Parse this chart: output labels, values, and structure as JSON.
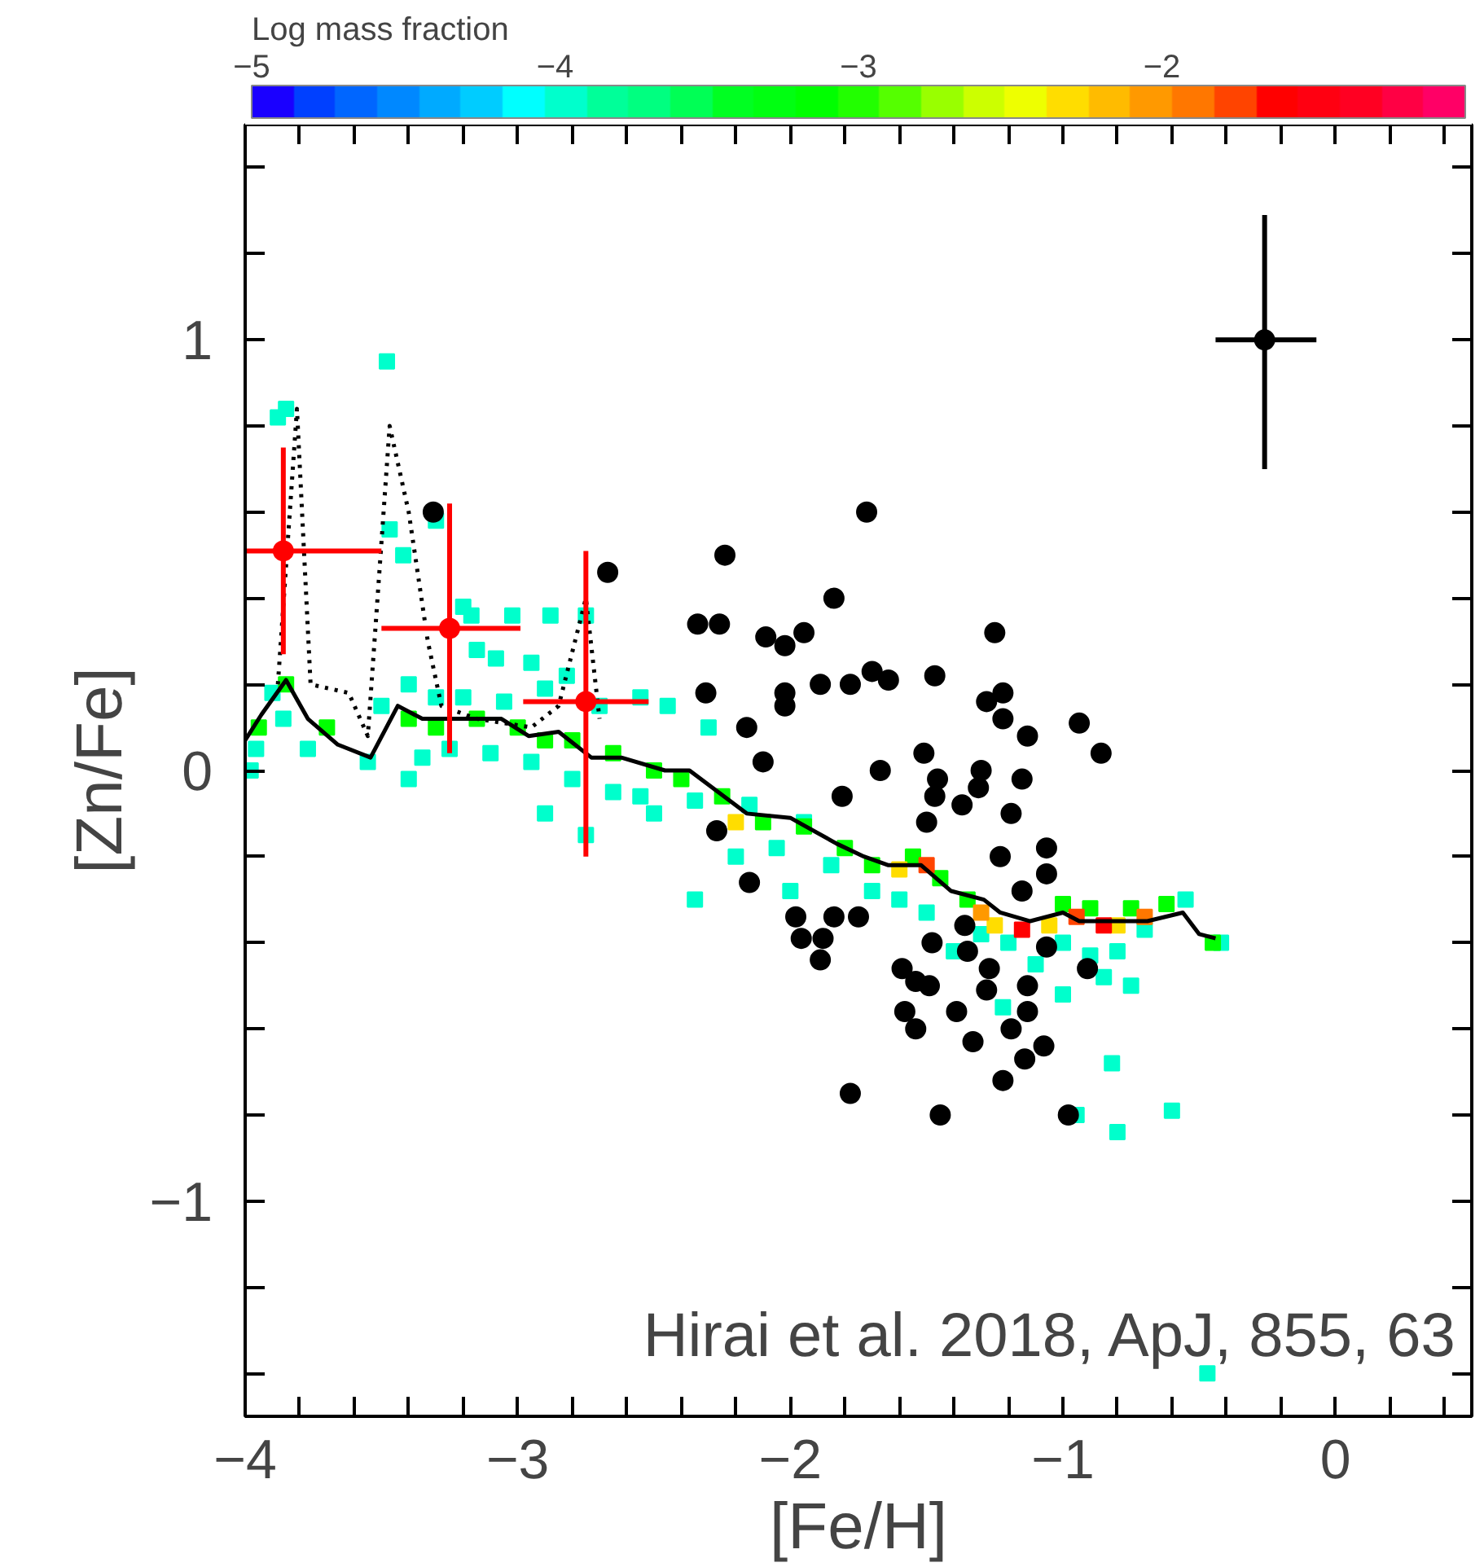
{
  "chart_data": {
    "type": "scatter",
    "xlabel": "[Fe/H]",
    "ylabel": "[Zn/Fe]",
    "clabel": "Log mass fraction",
    "xlim": [
      -4,
      0.5
    ],
    "ylim": [
      -1.5,
      1.5
    ],
    "clim": [
      -5,
      -1
    ],
    "cticks": [
      {
        "value": -5,
        "label": "−5"
      },
      {
        "value": -4,
        "label": "−4"
      },
      {
        "value": -3,
        "label": "−3"
      },
      {
        "value": -2,
        "label": "−2"
      }
    ],
    "xticks": [
      {
        "value": -4,
        "label": "−4"
      },
      {
        "value": -3.8,
        "label": null
      },
      {
        "value": -3.6,
        "label": null
      },
      {
        "value": -3.4,
        "label": null
      },
      {
        "value": -3.2,
        "label": null
      },
      {
        "value": -3,
        "label": "−3"
      },
      {
        "value": -2.8,
        "label": null
      },
      {
        "value": -2.6,
        "label": null
      },
      {
        "value": -2.4,
        "label": null
      },
      {
        "value": -2.2,
        "label": null
      },
      {
        "value": -2,
        "label": "−2"
      },
      {
        "value": -1.8,
        "label": null
      },
      {
        "value": -1.6,
        "label": null
      },
      {
        "value": -1.4,
        "label": null
      },
      {
        "value": -1.2,
        "label": null
      },
      {
        "value": -1,
        "label": "−1"
      },
      {
        "value": -0.8,
        "label": null
      },
      {
        "value": -0.6,
        "label": null
      },
      {
        "value": -0.4,
        "label": null
      },
      {
        "value": -0.2,
        "label": null
      },
      {
        "value": 0,
        "label": "0"
      },
      {
        "value": 0.2,
        "label": null
      },
      {
        "value": 0.4,
        "label": null
      }
    ],
    "yticks": [
      {
        "value": -1.4,
        "label": null
      },
      {
        "value": -1.2,
        "label": null
      },
      {
        "value": -1,
        "label": "−1"
      },
      {
        "value": -0.8,
        "label": null
      },
      {
        "value": -0.6,
        "label": null
      },
      {
        "value": -0.4,
        "label": null
      },
      {
        "value": -0.2,
        "label": null
      },
      {
        "value": 0,
        "label": "0"
      },
      {
        "value": 0.2,
        "label": null
      },
      {
        "value": 0.4,
        "label": null
      },
      {
        "value": 0.6,
        "label": null
      },
      {
        "value": 0.8,
        "label": null
      },
      {
        "value": 1,
        "label": "1"
      },
      {
        "value": 1.2,
        "label": null
      },
      {
        "value": 1.4,
        "label": null
      }
    ],
    "grid": false,
    "annotations": [
      "Hirai et al. 2018, ApJ, 855, 63"
    ],
    "series": [
      {
        "marker": "square",
        "colors": [
          "#00ffcc",
          "#00ffcc",
          "#00ffcc",
          "#00ffcc",
          "#00ffcc",
          "#00ffcc",
          "#00ffcc",
          "#00ffcc",
          "#00ffcc",
          "#00ffcc",
          "#00ffcc",
          "#00ffcc",
          "#00ffcc",
          "#00ffcc",
          "#00ffcc",
          "#00ffcc",
          "#00ffcc",
          "#00ffcc",
          "#00ffcc",
          "#00ffcc",
          "#00ffcc",
          "#00ffcc",
          "#00ffcc",
          "#00ffcc",
          "#00ffcc",
          "#00ffcc",
          "#00ffcc",
          "#00ffcc",
          "#00ffcc",
          "#00ffcc",
          "#00ffcc",
          "#00ffcc",
          "#00ffcc",
          "#00ffcc",
          "#00ffcc",
          "#00ffcc",
          "#00ffcc",
          "#00ffcc",
          "#00ffcc",
          "#00ffcc",
          "#00ffcc",
          "#00ffcc",
          "#00ffcc",
          "#00ffcc",
          "#00ffcc",
          "#00ffcc",
          "#00ffcc",
          "#00ffcc",
          "#00ffcc",
          "#00ffcc",
          "#00ffcc",
          "#00ffcc",
          "#00ffcc",
          "#00ffcc",
          "#00ffcc",
          "#00ffcc",
          "#00ffcc",
          "#00ffcc",
          "#00ffcc",
          "#00ffcc",
          "#00ffcc",
          "#00ffcc",
          "#00ffcc",
          "#00ffcc",
          "#00ffcc",
          "#00ffcc",
          "#00ffcc",
          "#00ffcc",
          "#00ffcc",
          "#00ffcc",
          "#00ffcc",
          "#00ffcc",
          "#00ff00",
          "#00ff00",
          "#00ff00",
          "#00ff00",
          "#00ff00",
          "#00ff00",
          "#00ff00",
          "#00ff00",
          "#00ff00",
          "#00ff00",
          "#00ff00",
          "#00ff00",
          "#00ff00",
          "#00ff00",
          "#00ff00",
          "#00ff00",
          "#00ff00",
          "#00ff00",
          "#00ff00",
          "#00ff00",
          "#00ff00",
          "#00ff00",
          "#00ff00",
          "#00ff00",
          "#00ff00",
          "#ffdd00",
          "#ffdd00",
          "#ffdd00",
          "#ffdd00",
          "#ffdd00",
          "#ff4400",
          "#ff9900",
          "#ff0000",
          "#ff4400",
          "#ff7700",
          "#ff0000"
        ],
        "x": [
          -3.85,
          -3.88,
          -3.86,
          -3.96,
          -3.98,
          -3.9,
          -3.77,
          -3.55,
          -3.5,
          -3.48,
          -3.47,
          -3.42,
          -3.3,
          -3.2,
          -3.17,
          -3.02,
          -2.88,
          -2.75,
          -3.15,
          -3.08,
          -2.95,
          -2.82,
          -3.4,
          -3.3,
          -3.2,
          -3.05,
          -2.9,
          -2.7,
          -2.55,
          -2.45,
          -3.35,
          -3.25,
          -3.1,
          -2.95,
          -2.8,
          -2.65,
          -2.55,
          -3.4,
          -2.9,
          -2.75,
          -2.5,
          -2.35,
          -2.3,
          -2.15,
          -2.05,
          -2.2,
          -1.95,
          -1.85,
          -2.0,
          -2.35,
          -1.7,
          -1.6,
          -1.5,
          -1.4,
          -1.3,
          -1.2,
          -1.1,
          -1.0,
          -0.9,
          -0.8,
          -0.7,
          -0.55,
          -0.42,
          -0.75,
          -0.85,
          -1.0,
          -0.82,
          -0.95,
          -1.22,
          -0.6,
          -0.8,
          -0.47,
          -3.95,
          -3.85,
          -3.7,
          -3.4,
          -3.3,
          -3.15,
          -3.0,
          -2.9,
          -2.8,
          -2.65,
          -2.5,
          -2.4,
          -2.25,
          -2.1,
          -1.95,
          -1.8,
          -1.7,
          -1.55,
          -1.45,
          -1.35,
          -1.0,
          -0.9,
          -0.75,
          -0.62,
          -0.45,
          -2.2,
          -1.6,
          -1.25,
          -1.05,
          -0.8,
          -1.5,
          -1.3,
          -1.15,
          -0.95,
          -0.7,
          -0.85
        ],
        "values": [
          0.84,
          0.82,
          0.12,
          0.05,
          0.0,
          0.18,
          0.05,
          0.02,
          0.15,
          0.95,
          0.56,
          0.5,
          0.58,
          0.38,
          0.36,
          0.36,
          0.36,
          0.36,
          0.28,
          0.26,
          0.25,
          0.22,
          0.2,
          0.17,
          0.17,
          0.16,
          0.19,
          0.15,
          0.17,
          0.15,
          0.03,
          0.05,
          0.04,
          0.02,
          -0.02,
          -0.05,
          -0.06,
          -0.02,
          -0.1,
          -0.15,
          -0.1,
          -0.07,
          0.1,
          -0.08,
          -0.18,
          -0.2,
          -0.12,
          -0.22,
          -0.28,
          -0.3,
          -0.28,
          -0.3,
          -0.33,
          -0.42,
          -0.38,
          -0.4,
          -0.45,
          -0.4,
          -0.43,
          -0.42,
          -0.37,
          -0.3,
          -0.4,
          -0.5,
          -0.48,
          -0.52,
          -0.68,
          -0.8,
          -0.55,
          -0.79,
          -0.84,
          -1.4,
          0.1,
          0.2,
          0.1,
          0.12,
          0.1,
          0.12,
          0.1,
          0.07,
          0.07,
          0.04,
          0.0,
          -0.02,
          -0.06,
          -0.12,
          -0.13,
          -0.18,
          -0.22,
          -0.2,
          -0.25,
          -0.3,
          -0.31,
          -0.32,
          -0.32,
          -0.31,
          -0.4,
          -0.12,
          -0.23,
          -0.36,
          -0.36,
          -0.36,
          -0.22,
          -0.33,
          -0.37,
          -0.34,
          -0.34,
          -0.36
        ],
        "cvalues": [
          -4,
          -4,
          -4,
          -4,
          -4,
          -4,
          -4,
          -4,
          -4,
          -4,
          -4,
          -4,
          -4,
          -4,
          -4,
          -4,
          -4,
          -4,
          -4,
          -4,
          -4,
          -4,
          -4,
          -4,
          -4,
          -4,
          -4,
          -4,
          -4,
          -4,
          -4,
          -4,
          -4,
          -4,
          -4,
          -4,
          -4,
          -4,
          -4,
          -4,
          -4,
          -4,
          -4,
          -4,
          -4,
          -4,
          -4,
          -4,
          -4,
          -4,
          -4,
          -4,
          -4,
          -4,
          -4,
          -4,
          -4,
          -4,
          -4,
          -4,
          -4,
          -4,
          -4,
          -4,
          -4,
          -4,
          -4,
          -4,
          -4,
          -4,
          -4,
          -4,
          -3.2,
          -3.2,
          -3.2,
          -3.2,
          -3.2,
          -3.2,
          -3.2,
          -3.2,
          -3.2,
          -3.2,
          -3.2,
          -3.2,
          -3.2,
          -3.2,
          -3.2,
          -3.2,
          -3.2,
          -3.2,
          -3.2,
          -3.2,
          -3.2,
          -3.2,
          -3.2,
          -3.2,
          -3.2,
          -2.3,
          -2.3,
          -2.3,
          -2.3,
          -2.3,
          -1.8,
          -2.0,
          -1.6,
          -1.8,
          -1.9,
          -1.6
        ]
      },
      {
        "type": "line",
        "line_style": "dotted",
        "color": "#000000",
        "x": [
          -3.88,
          -3.81,
          -3.76,
          -3.62,
          -3.55,
          -3.47,
          -3.4,
          -3.33,
          -3.28,
          -3.15,
          -2.95,
          -2.85,
          -2.75,
          -2.7
        ],
        "values": [
          0.2,
          0.84,
          0.2,
          0.18,
          0.08,
          0.8,
          0.6,
          0.3,
          0.15,
          0.12,
          0.1,
          0.15,
          0.4,
          0.12
        ]
      },
      {
        "type": "line",
        "line_style": "solid",
        "color": "#000000",
        "x": [
          -4.0,
          -3.94,
          -3.85,
          -3.77,
          -3.66,
          -3.54,
          -3.44,
          -3.35,
          -3.25,
          -3.06,
          -2.96,
          -2.85,
          -2.73,
          -2.62,
          -2.46,
          -2.37,
          -2.16,
          -2.0,
          -1.83,
          -1.73,
          -1.64,
          -1.52,
          -1.41,
          -1.29,
          -1.23,
          -1.12,
          -1.0,
          -0.94,
          -0.81,
          -0.69,
          -0.56,
          -0.5,
          -0.44
        ],
        "values": [
          0.07,
          0.13,
          0.21,
          0.12,
          0.06,
          0.03,
          0.15,
          0.12,
          0.12,
          0.12,
          0.08,
          0.09,
          0.03,
          0.03,
          0.0,
          0.0,
          -0.1,
          -0.11,
          -0.17,
          -0.2,
          -0.22,
          -0.22,
          -0.28,
          -0.3,
          -0.33,
          -0.35,
          -0.33,
          -0.35,
          -0.35,
          -0.35,
          -0.33,
          -0.38,
          -0.39
        ]
      },
      {
        "marker": "circle",
        "color": "#000000",
        "x": [
          -2.67,
          -2.24,
          -1.72,
          -1.84,
          -2.34,
          -2.26,
          -2.09,
          -2.02,
          -1.95,
          -1.25,
          -1.89,
          -1.78,
          -1.7,
          -1.64,
          -1.47,
          -1.28,
          -1.22,
          -2.31,
          -2.02,
          -2.02,
          -1.22,
          -1.13,
          -0.94,
          -0.86,
          -2.16,
          -1.51,
          -2.1,
          -1.67,
          -1.46,
          -1.47,
          -1.3,
          -1.31,
          -1.37,
          -1.15,
          -1.19,
          -1.5,
          -2.27,
          -2.15,
          -1.81,
          -1.23,
          -1.06,
          -1.06,
          -1.15,
          -1.98,
          -1.96,
          -1.88,
          -1.84,
          -1.75,
          -1.89,
          -1.48,
          -1.36,
          -1.35,
          -1.27,
          -1.28,
          -1.59,
          -1.54,
          -1.49,
          -1.58,
          -1.54,
          -1.39,
          -1.33,
          -1.19,
          -1.13,
          -1.13,
          -1.14,
          -1.07,
          -1.22,
          -1.78,
          -1.45,
          -0.98,
          -1.06,
          -0.91,
          -3.31
        ],
        "values": [
          0.46,
          0.5,
          0.6,
          0.4,
          0.34,
          0.34,
          0.31,
          0.29,
          0.32,
          0.32,
          0.2,
          0.2,
          0.23,
          0.21,
          0.22,
          0.16,
          0.18,
          0.18,
          0.18,
          0.15,
          0.12,
          0.08,
          0.11,
          0.04,
          0.1,
          0.04,
          0.02,
          0.0,
          -0.02,
          -0.06,
          0.0,
          -0.04,
          -0.08,
          -0.02,
          -0.1,
          -0.12,
          -0.14,
          -0.26,
          -0.06,
          -0.2,
          -0.18,
          -0.24,
          -0.28,
          -0.34,
          -0.39,
          -0.39,
          -0.34,
          -0.34,
          -0.44,
          -0.4,
          -0.36,
          -0.42,
          -0.46,
          -0.51,
          -0.46,
          -0.49,
          -0.5,
          -0.56,
          -0.6,
          -0.56,
          -0.63,
          -0.6,
          -0.56,
          -0.5,
          -0.67,
          -0.64,
          -0.72,
          -0.75,
          -0.8,
          -0.8,
          -0.41,
          -0.46,
          0.6
        ]
      },
      {
        "marker": "circle",
        "color": "#ff0000",
        "x": [
          -3.86,
          -3.25,
          -2.75
        ],
        "values": [
          0.51,
          0.33,
          0.16
        ],
        "errors": [
          [
            0.27,
            0.75
          ],
          [
            0.04,
            0.62
          ],
          [
            -0.2,
            0.51
          ]
        ],
        "xerrors": [
          [
            -4.0,
            -3.5
          ],
          [
            -3.5,
            -2.99
          ],
          [
            -2.98,
            -2.52
          ]
        ]
      },
      {
        "marker": "circle",
        "color": "#000000",
        "x": [
          -0.26
        ],
        "values": [
          1.0
        ],
        "errors": [
          [
            0.7,
            1.29
          ]
        ],
        "xerrors": [
          [
            -0.44,
            -0.07
          ]
        ]
      }
    ]
  }
}
